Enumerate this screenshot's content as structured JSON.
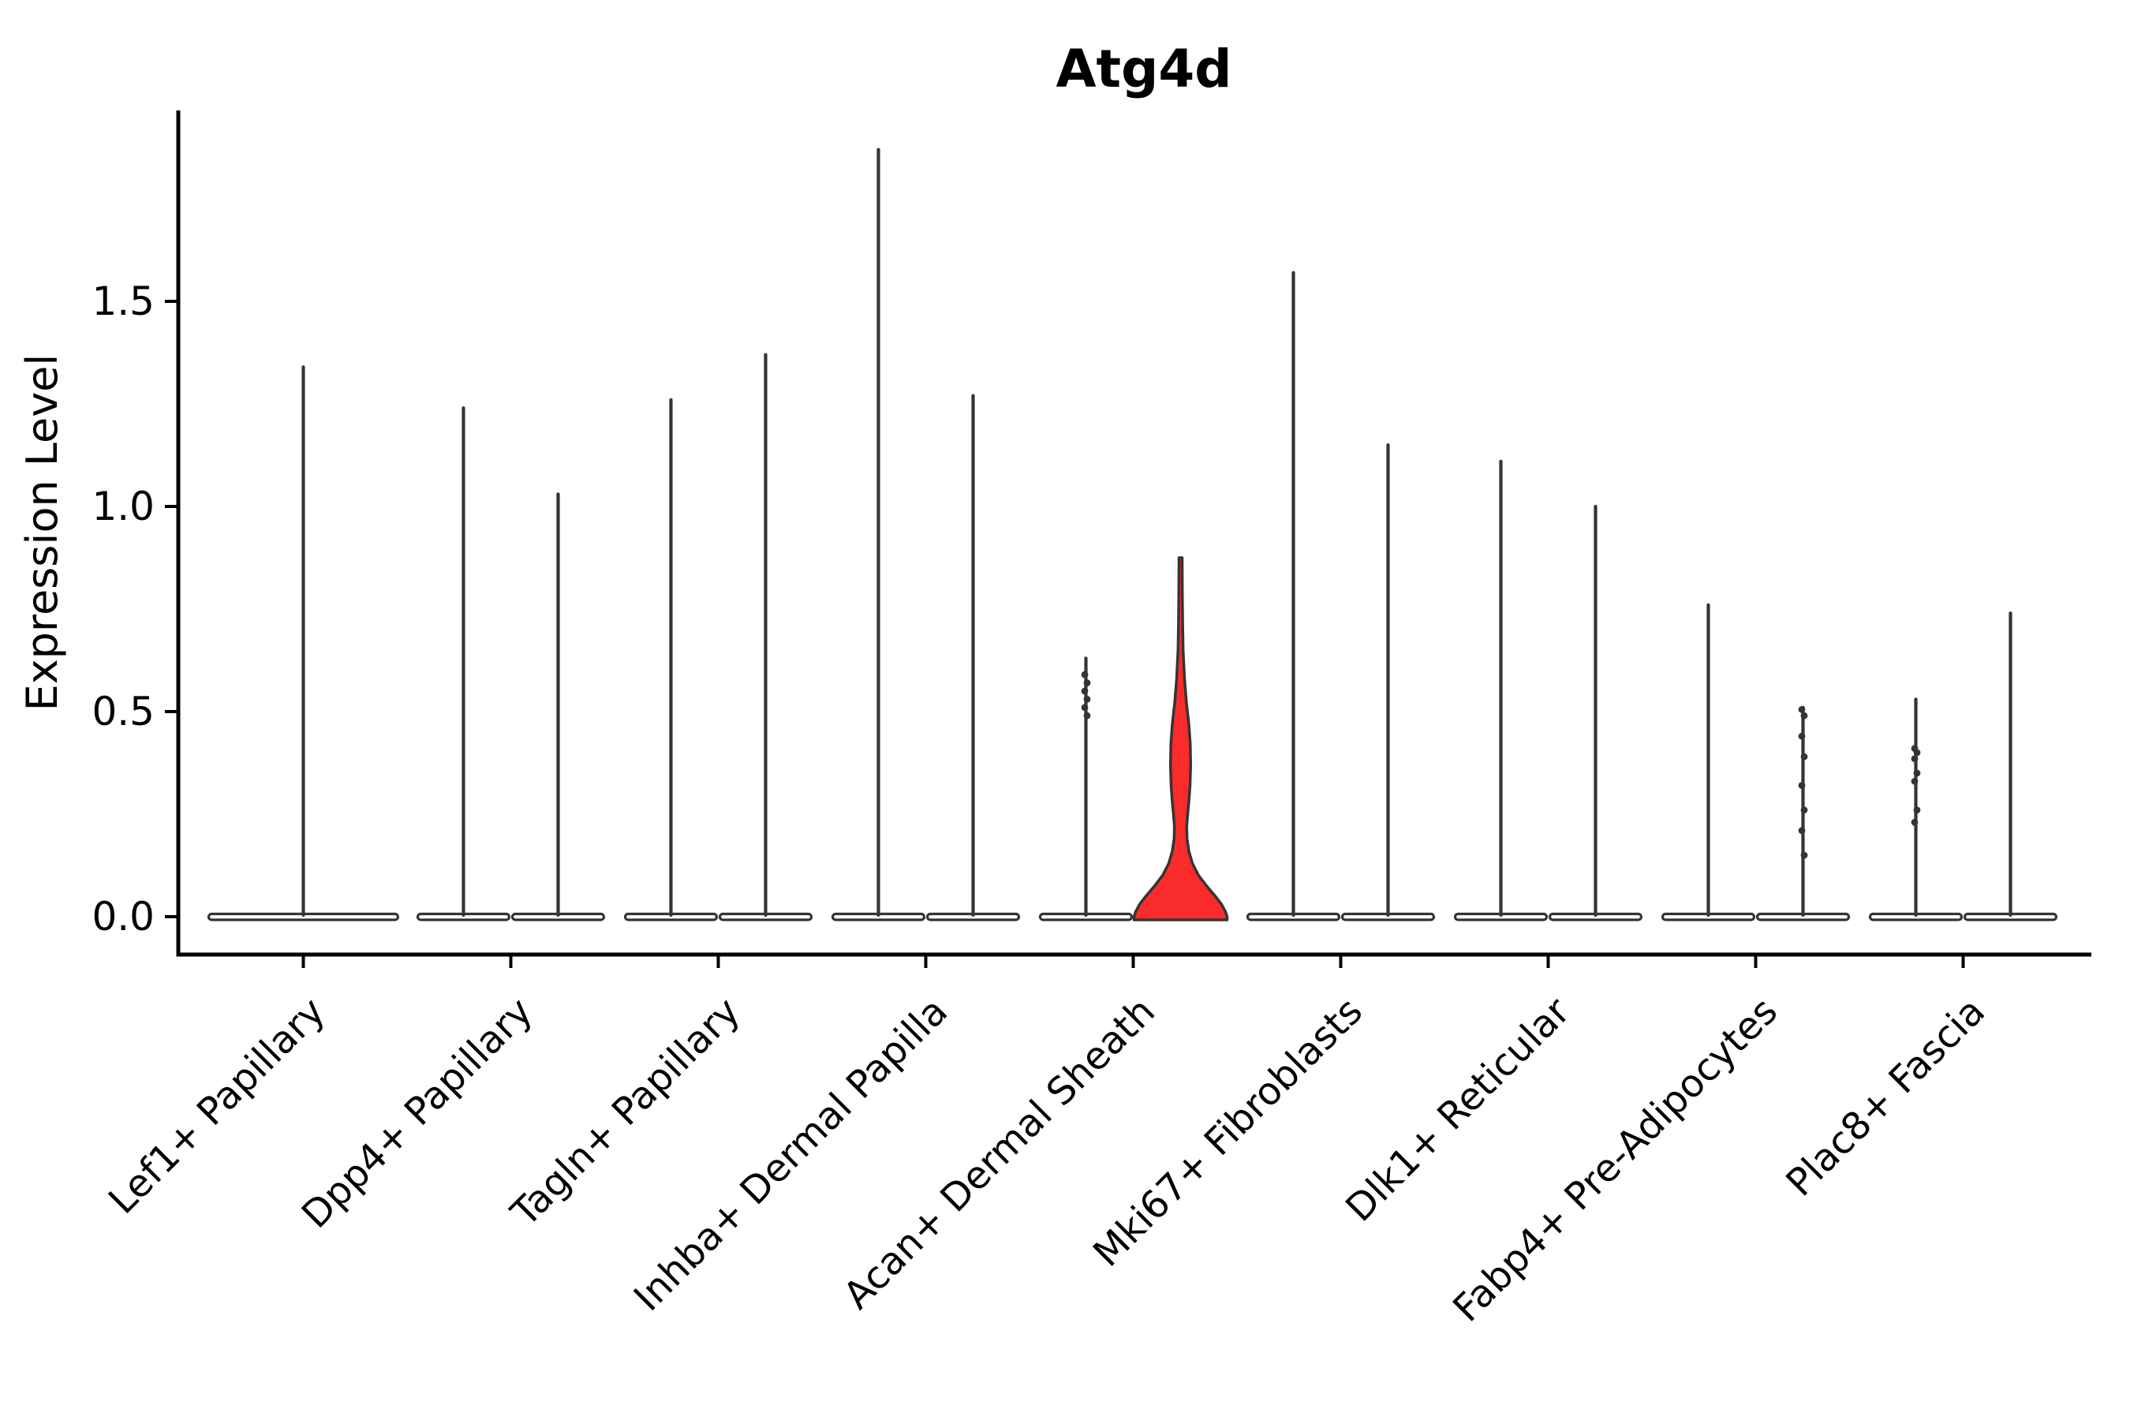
{
  "chart_data": {
    "type": "violin",
    "title": "Atg4d",
    "ylabel": "Expression Level",
    "xlabel": "",
    "ylim": [
      -0.09,
      1.97
    ],
    "grid": false,
    "legend": "none",
    "yticks": [
      {
        "label": "0.0",
        "value": 0.0
      },
      {
        "label": "0.5",
        "value": 0.5
      },
      {
        "label": "1.0",
        "value": 1.0
      },
      {
        "label": "1.5",
        "value": 1.5
      }
    ],
    "categories": [
      "Lef1+ Papillary",
      "Dpp4+ Papillary",
      "Tagln+ Papillary",
      "Inhba+ Dermal Papilla",
      "Acan+ Dermal Sheath",
      "Mki67+ Fibroblasts",
      "Dlk1+ Reticular",
      "Fabp4+ Pre-Adipocytes",
      "Plac8+ Fascia"
    ],
    "colors": {
      "violin_fill": "#FFFFFF",
      "highlight_fill": "#FA2B2B",
      "violin_outline": "#343434",
      "axis_color": "#000000",
      "dot_color": "#343434"
    },
    "violins": [
      {
        "category_index": 0,
        "side": "center",
        "max": 1.34,
        "highlight": false,
        "dots": []
      },
      {
        "category_index": 1,
        "side": "left",
        "max": 1.24,
        "highlight": false,
        "dots": []
      },
      {
        "category_index": 1,
        "side": "right",
        "max": 1.03,
        "highlight": false,
        "dots": []
      },
      {
        "category_index": 2,
        "side": "left",
        "max": 1.26,
        "highlight": false,
        "dots": []
      },
      {
        "category_index": 2,
        "side": "right",
        "max": 1.37,
        "highlight": false,
        "dots": []
      },
      {
        "category_index": 3,
        "side": "left",
        "max": 1.87,
        "highlight": false,
        "dots": []
      },
      {
        "category_index": 3,
        "side": "right",
        "max": 1.27,
        "highlight": false,
        "dots": []
      },
      {
        "category_index": 4,
        "side": "left",
        "max": 0.63,
        "highlight": false,
        "dots": [
          0.59,
          0.57,
          0.55,
          0.53,
          0.51,
          0.49
        ]
      },
      {
        "category_index": 4,
        "side": "right",
        "max": 0.875,
        "highlight": true,
        "profile": [
          [
            0.875,
            2
          ],
          [
            0.8,
            2.2
          ],
          [
            0.72,
            2.6
          ],
          [
            0.65,
            3.2
          ],
          [
            0.58,
            5.0
          ],
          [
            0.52,
            7.5
          ],
          [
            0.47,
            10.5
          ],
          [
            0.42,
            12.3
          ],
          [
            0.37,
            12.8
          ],
          [
            0.32,
            12.0
          ],
          [
            0.28,
            10.5
          ],
          [
            0.245,
            8.8
          ],
          [
            0.22,
            7.8
          ],
          [
            0.19,
            8.2
          ],
          [
            0.16,
            10.5
          ],
          [
            0.13,
            15
          ],
          [
            0.1,
            23
          ],
          [
            0.075,
            33
          ],
          [
            0.05,
            44
          ],
          [
            0.03,
            52
          ],
          [
            0.012,
            57
          ],
          [
            0.0,
            59
          ]
        ],
        "dots": []
      },
      {
        "category_index": 5,
        "side": "left",
        "max": 1.57,
        "highlight": false,
        "dots": []
      },
      {
        "category_index": 5,
        "side": "right",
        "max": 1.15,
        "highlight": false,
        "dots": []
      },
      {
        "category_index": 6,
        "side": "left",
        "max": 1.11,
        "highlight": false,
        "dots": []
      },
      {
        "category_index": 6,
        "side": "right",
        "max": 1.0,
        "highlight": false,
        "dots": []
      },
      {
        "category_index": 7,
        "side": "left",
        "max": 0.76,
        "highlight": false,
        "dots": []
      },
      {
        "category_index": 7,
        "side": "right",
        "max": 0.51,
        "highlight": false,
        "dots": [
          0.505,
          0.49,
          0.44,
          0.39,
          0.32,
          0.26,
          0.21,
          0.15
        ]
      },
      {
        "category_index": 8,
        "side": "left",
        "max": 0.53,
        "highlight": false,
        "dots": [
          0.41,
          0.4,
          0.385,
          0.35,
          0.33,
          0.26,
          0.23
        ]
      },
      {
        "category_index": 8,
        "side": "right",
        "max": 0.74,
        "highlight": false,
        "dots": []
      }
    ]
  }
}
